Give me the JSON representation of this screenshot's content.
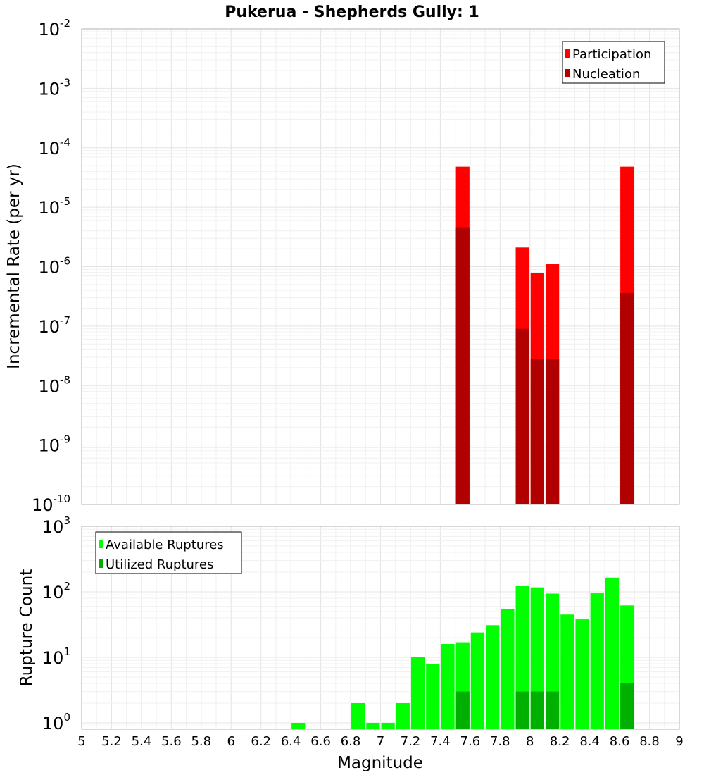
{
  "chart_data": [
    {
      "type": "bar",
      "title": "Pukerua - Shepherds Gully: 1",
      "xlabel": "",
      "ylabel": "Incremental Rate (per yr)",
      "xlim": [
        5,
        9
      ],
      "ylim": [
        1e-10,
        0.01
      ],
      "yscale": "log",
      "y_tick_exponents": [
        -10,
        -9,
        -8,
        -7,
        -6,
        -5,
        -4,
        -3,
        -2
      ],
      "grid": true,
      "legend_position": "top-right",
      "series": [
        {
          "name": "Participation",
          "color": "#ff0000",
          "points": [
            {
              "x": 7.55,
              "y": 4.8e-05
            },
            {
              "x": 7.95,
              "y": 2.1e-06
            },
            {
              "x": 8.05,
              "y": 7.8e-07
            },
            {
              "x": 8.15,
              "y": 1.1e-06
            },
            {
              "x": 8.65,
              "y": 4.8e-05
            }
          ]
        },
        {
          "name": "Nucleation",
          "color": "#b00000",
          "points": [
            {
              "x": 7.55,
              "y": 4.6e-06
            },
            {
              "x": 7.95,
              "y": 9e-08
            },
            {
              "x": 8.05,
              "y": 2.8e-08
            },
            {
              "x": 8.15,
              "y": 2.8e-08
            },
            {
              "x": 8.65,
              "y": 3.6e-07
            }
          ]
        }
      ]
    },
    {
      "type": "bar",
      "xlabel": "Magnitude",
      "ylabel": "Rupture Count",
      "xlim": [
        5,
        9
      ],
      "ylim": [
        0.8,
        1000
      ],
      "yscale": "log",
      "y_tick_exponents": [
        0,
        1,
        2,
        3
      ],
      "x_ticks": [
        "5",
        "5.2",
        "5.4",
        "5.6",
        "5.8",
        "6",
        "6.2",
        "6.4",
        "6.6",
        "6.8",
        "7",
        "7.2",
        "7.4",
        "7.6",
        "7.8",
        "8",
        "8.2",
        "8.4",
        "8.6",
        "8.8",
        "9"
      ],
      "grid": true,
      "legend_position": "top-left",
      "series": [
        {
          "name": "Available Ruptures",
          "color": "#00ff00",
          "points": [
            {
              "x": 6.45,
              "y": 1
            },
            {
              "x": 6.85,
              "y": 2
            },
            {
              "x": 6.95,
              "y": 1
            },
            {
              "x": 7.05,
              "y": 1
            },
            {
              "x": 7.15,
              "y": 2
            },
            {
              "x": 7.25,
              "y": 10
            },
            {
              "x": 7.35,
              "y": 8
            },
            {
              "x": 7.45,
              "y": 16
            },
            {
              "x": 7.55,
              "y": 17
            },
            {
              "x": 7.65,
              "y": 24
            },
            {
              "x": 7.75,
              "y": 31
            },
            {
              "x": 7.85,
              "y": 54
            },
            {
              "x": 7.95,
              "y": 122
            },
            {
              "x": 8.05,
              "y": 117
            },
            {
              "x": 8.15,
              "y": 94
            },
            {
              "x": 8.25,
              "y": 45
            },
            {
              "x": 8.35,
              "y": 38
            },
            {
              "x": 8.45,
              "y": 95
            },
            {
              "x": 8.55,
              "y": 165
            },
            {
              "x": 8.65,
              "y": 62
            }
          ]
        },
        {
          "name": "Utilized Ruptures",
          "color": "#00b000",
          "points": [
            {
              "x": 7.55,
              "y": 3
            },
            {
              "x": 7.95,
              "y": 3
            },
            {
              "x": 8.05,
              "y": 3
            },
            {
              "x": 8.15,
              "y": 3
            },
            {
              "x": 8.65,
              "y": 4
            }
          ]
        }
      ]
    }
  ]
}
